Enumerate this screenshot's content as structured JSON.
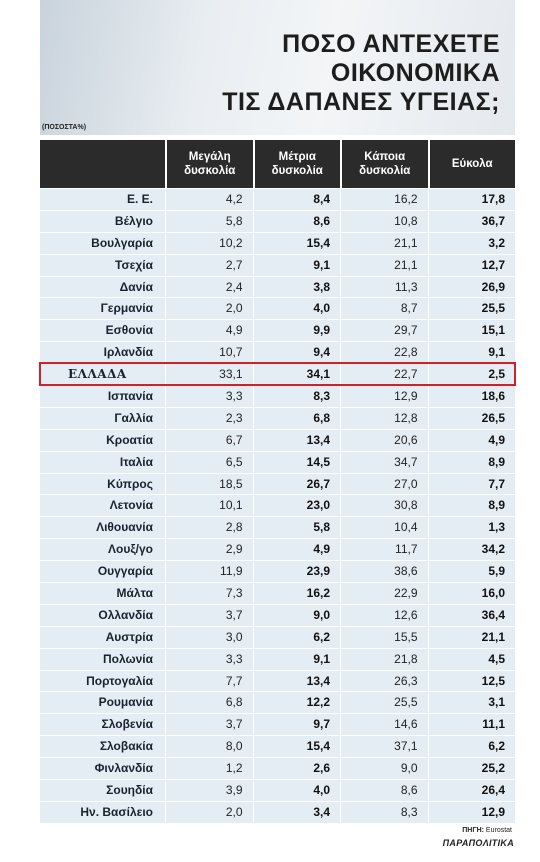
{
  "header": {
    "title_lines": [
      "ΠΟΣΟ ΑΝΤΕΧΕΤΕ",
      "ΟΙΚΟΝΟΜΙΚΑ",
      "ΤΙΣ ΔΑΠΑΝΕΣ ΥΓΕΙΑΣ;"
    ],
    "unit": "(ΠΟΣΟΣΤΑ%)"
  },
  "table": {
    "columns": [
      "Μεγάλη δυσκολία",
      "Μέτρια δυσκολία",
      "Κάποια δυσκολία",
      "Εύκολα"
    ],
    "rows": [
      [
        "Ε. Ε.",
        "4,2",
        "8,4",
        "16,2",
        "17,8"
      ],
      [
        "Βέλγιο",
        "5,8",
        "8,6",
        "10,8",
        "36,7"
      ],
      [
        "Βουλγαρία",
        "10,2",
        "15,4",
        "21,1",
        "3,2"
      ],
      [
        "Τσεχία",
        "2,7",
        "9,1",
        "21,1",
        "12,7"
      ],
      [
        "Δανία",
        "2,4",
        "3,8",
        "11,3",
        "26,9"
      ],
      [
        "Γερμανία",
        "2,0",
        "4,0",
        "8,7",
        "25,5"
      ],
      [
        "Εσθονία",
        "4,9",
        "9,9",
        "29,7",
        "15,1"
      ],
      [
        "Ιρλανδία",
        "10,7",
        "9,4",
        "22,8",
        "9,1"
      ],
      [
        "ΕΛΛΑΔΑ",
        "33,1",
        "34,1",
        "22,7",
        "2,5"
      ],
      [
        "Ισπανία",
        "3,3",
        "8,3",
        "12,9",
        "18,6"
      ],
      [
        "Γαλλία",
        "2,3",
        "6,8",
        "12,8",
        "26,5"
      ],
      [
        "Κροατία",
        "6,7",
        "13,4",
        "20,6",
        "4,9"
      ],
      [
        "Ιταλία",
        "6,5",
        "14,5",
        "34,7",
        "8,9"
      ],
      [
        "Κύπρος",
        "18,5",
        "26,7",
        "27,0",
        "7,7"
      ],
      [
        "Λετονία",
        "10,1",
        "23,0",
        "30,8",
        "8,9"
      ],
      [
        "Λιθουανία",
        "2,8",
        "5,8",
        "10,4",
        "1,3"
      ],
      [
        "Λουξ/γο",
        "2,9",
        "4,9",
        "11,7",
        "34,2"
      ],
      [
        "Ουγγαρία",
        "11,9",
        "23,9",
        "38,6",
        "5,9"
      ],
      [
        "Μάλτα",
        "7,3",
        "16,2",
        "22,9",
        "16,0"
      ],
      [
        "Ολλανδία",
        "3,7",
        "9,0",
        "12,6",
        "36,4"
      ],
      [
        "Αυστρία",
        "3,0",
        "6,2",
        "15,5",
        "21,1"
      ],
      [
        "Πολωνία",
        "3,3",
        "9,1",
        "21,8",
        "4,5"
      ],
      [
        "Πορτογαλία",
        "7,7",
        "13,4",
        "26,3",
        "12,5"
      ],
      [
        "Ρουμανία",
        "6,8",
        "12,2",
        "25,5",
        "3,1"
      ],
      [
        "Σλοβενία",
        "3,7",
        "9,7",
        "14,6",
        "11,1"
      ],
      [
        "Σλοβακία",
        "8,0",
        "15,4",
        "37,1",
        "6,2"
      ],
      [
        "Φινλανδία",
        "1,2",
        "2,6",
        "9,0",
        "25,2"
      ],
      [
        "Σουηδία",
        "3,9",
        "4,0",
        "8,6",
        "26,4"
      ],
      [
        "Ην. Βασίλειο",
        "2,0",
        "3,4",
        "8,3",
        "12,9"
      ]
    ],
    "highlight_row": 8,
    "bold_columns": [
      2,
      4
    ]
  },
  "footer": {
    "source_label": "ΠΗΓΗ:",
    "source": "Eurostat",
    "brand": "ΠΑΡΑΠΟΛΙΤΙΚΑ"
  }
}
